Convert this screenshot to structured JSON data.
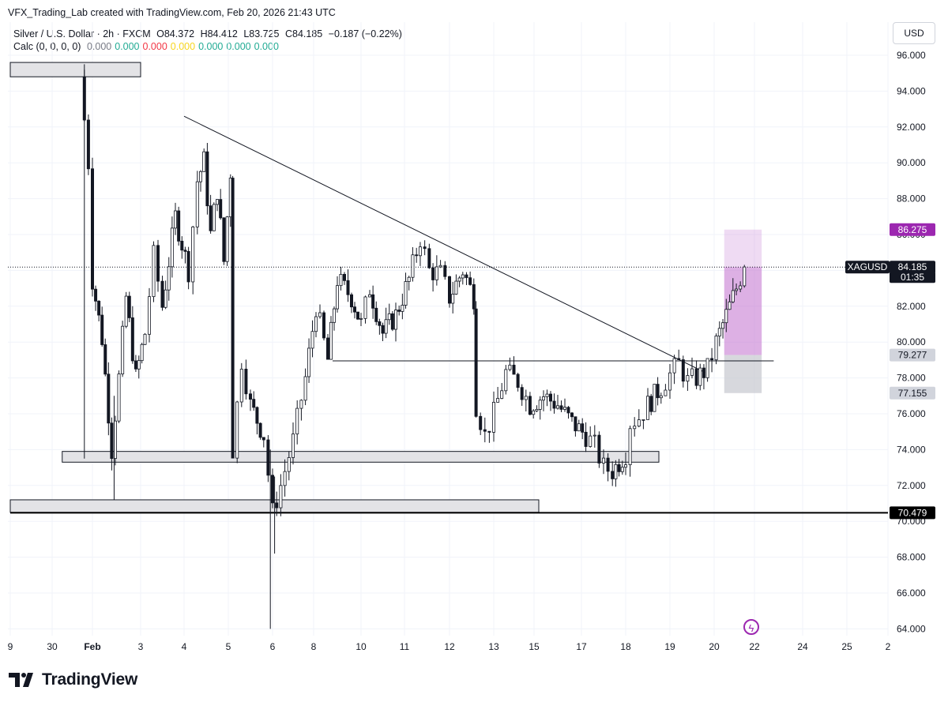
{
  "header": {
    "credit": "VFX_Trading_Lab created with TradingView.com, Feb 20, 2026 21:43 UTC",
    "symbol_line": "Silver / U.S. Dollar · 2h · FXCM",
    "open": "O84.372",
    "high": "H84.412",
    "low": "L83.725",
    "close": "C84.185",
    "change": "−0.187 (−0.22%)",
    "indicator_name": "Calc (0, 0, 0, 0)",
    "indicator_values": [
      {
        "text": "0.000",
        "color": "#787b86"
      },
      {
        "text": "0.000",
        "color": "#22ab94"
      },
      {
        "text": "0.000",
        "color": "#f23645"
      },
      {
        "text": "0.000",
        "color": "#f7d51d"
      },
      {
        "text": "0.000",
        "color": "#22ab94"
      },
      {
        "text": "0.000",
        "color": "#22ab94"
      },
      {
        "text": "0.000",
        "color": "#22ab94"
      }
    ]
  },
  "currency_button": "USD",
  "brand": {
    "logo": "tradingview-logo-icon",
    "name": "TradingView"
  },
  "chart_data": {
    "type": "candlestick",
    "symbol": "XAGUSD",
    "timeframe": "2h",
    "y_axis": {
      "side": "right",
      "range": [
        63.5,
        97.5
      ],
      "ticks": [
        "96.000",
        "94.000",
        "92.000",
        "90.000",
        "88.000",
        "86.000",
        "84.000",
        "82.000",
        "80.000",
        "78.000",
        "76.000",
        "74.000",
        "72.000",
        "70.000",
        "68.000",
        "66.000",
        "64.000"
      ]
    },
    "x_axis": {
      "ticks": [
        {
          "label": "9",
          "x": 0.0
        },
        {
          "label": "30",
          "x": 1.0
        },
        {
          "label": "Feb",
          "x": 2.0
        },
        {
          "label": "3",
          "x": 3.0
        },
        {
          "label": "4",
          "x": 4.0
        },
        {
          "label": "5",
          "x": 5.0
        },
        {
          "label": "6",
          "x": 6.0
        },
        {
          "label": "8",
          "x": 7.0
        },
        {
          "label": "10",
          "x": 8.0
        },
        {
          "label": "11",
          "x": 9.0
        },
        {
          "label": "12",
          "x": 10.0
        },
        {
          "label": "13",
          "x": 11.0
        },
        {
          "label": "15",
          "x": 12.0
        },
        {
          "label": "17",
          "x": 13.0
        },
        {
          "label": "18",
          "x": 14.0
        },
        {
          "label": "19",
          "x": 15.0
        },
        {
          "label": "20",
          "x": 16.0
        },
        {
          "label": "22",
          "x": 17.0
        },
        {
          "label": "24",
          "x": 18.0
        },
        {
          "label": "25",
          "x": 19.0
        },
        {
          "label": "2",
          "x": 20.0
        }
      ]
    },
    "price_path": [
      [
        1.7,
        94.8
      ],
      [
        1.9,
        90.0
      ],
      [
        2.0,
        83.5
      ],
      [
        2.2,
        80.2
      ],
      [
        2.4,
        74.0
      ],
      [
        2.55,
        78.0
      ],
      [
        2.7,
        82.5
      ],
      [
        2.9,
        78.0
      ],
      [
        3.1,
        80.5
      ],
      [
        3.3,
        84.8
      ],
      [
        3.5,
        82.0
      ],
      [
        3.8,
        87.0
      ],
      [
        4.1,
        84.0
      ],
      [
        4.3,
        89.0
      ],
      [
        4.45,
        90.1
      ],
      [
        4.6,
        86.0
      ],
      [
        4.75,
        88.5
      ],
      [
        4.9,
        84.5
      ],
      [
        5.05,
        89.5
      ],
      [
        5.1,
        74.0
      ],
      [
        5.3,
        79.0
      ],
      [
        5.5,
        76.5
      ],
      [
        5.8,
        74.8
      ],
      [
        6.0,
        70.5
      ],
      [
        6.2,
        72.0
      ],
      [
        6.5,
        74.5
      ],
      [
        6.8,
        78.0
      ],
      [
        7.05,
        82.0
      ],
      [
        7.3,
        79.0
      ],
      [
        7.5,
        83.5
      ],
      [
        7.8,
        82.5
      ],
      [
        8.0,
        81.0
      ],
      [
        8.2,
        83.0
      ],
      [
        8.5,
        80.5
      ],
      [
        8.8,
        81.5
      ],
      [
        9.1,
        83.5
      ],
      [
        9.35,
        85.8
      ],
      [
        9.55,
        84.0
      ],
      [
        9.8,
        83.8
      ],
      [
        10.0,
        82.5
      ],
      [
        10.3,
        84.0
      ],
      [
        10.55,
        82.5
      ],
      [
        10.6,
        76.5
      ],
      [
        10.8,
        74.8
      ],
      [
        11.0,
        76.0
      ],
      [
        11.3,
        78.3
      ],
      [
        11.6,
        77.8
      ],
      [
        11.9,
        76.5
      ],
      [
        12.2,
        77.0
      ],
      [
        12.5,
        76.5
      ],
      [
        12.8,
        75.5
      ],
      [
        13.1,
        74.8
      ],
      [
        13.3,
        74.2
      ],
      [
        13.5,
        73.0
      ],
      [
        13.7,
        72.8
      ],
      [
        14.0,
        73.8
      ],
      [
        14.1,
        75.5
      ],
      [
        14.3,
        75.8
      ],
      [
        14.5,
        76.5
      ],
      [
        14.8,
        77.5
      ],
      [
        15.0,
        78.2
      ],
      [
        15.2,
        78.8
      ],
      [
        15.4,
        77.8
      ],
      [
        15.6,
        78.0
      ],
      [
        15.85,
        78.5
      ],
      [
        16.05,
        80.0
      ],
      [
        16.3,
        81.5
      ],
      [
        16.55,
        83.0
      ],
      [
        16.75,
        84.19
      ]
    ],
    "trendline": [
      [
        4.0,
        92.6
      ],
      [
        15.8,
        78.3
      ]
    ],
    "horizontal_lines": [
      {
        "x_from": 7.4,
        "x_to": 17.4,
        "y": 78.95,
        "color": "#131722"
      },
      {
        "x_from": 0.0,
        "x_to": 20.0,
        "y": 70.479,
        "color": "#000000"
      }
    ],
    "zones": [
      {
        "x_from": 0.0,
        "x_to": 3.0,
        "y_low": 94.8,
        "y_high": 95.6
      },
      {
        "x_from": 1.25,
        "x_to": 14.75,
        "y_low": 73.3,
        "y_high": 73.9
      },
      {
        "x_from": 0.0,
        "x_to": 12.1,
        "y_low": 70.5,
        "y_high": 71.2
      }
    ],
    "position_box": {
      "x_from": 16.25,
      "x_to": 17.15,
      "entry": 79.277,
      "target": 86.275,
      "stop": 77.155
    },
    "current_price_line": 84.185,
    "price_labels": [
      {
        "text": "86.275",
        "y": 86.275,
        "bg": "#9c27b0",
        "fg": "#ffffff"
      },
      {
        "text": "XAGUSD",
        "y": 84.185,
        "bg": "#131722",
        "fg": "#ffffff"
      },
      {
        "text": "84.185",
        "y": 84.185,
        "bg": "#131722",
        "fg": "#ffffff"
      },
      {
        "text": "01:35",
        "y": 84.185,
        "bg": "#131722",
        "fg": "#ffffff"
      },
      {
        "text": "79.277",
        "y": 79.277,
        "bg": "#d1d4dc",
        "fg": "#131722"
      },
      {
        "text": "77.155",
        "y": 77.155,
        "bg": "#d1d4dc",
        "fg": "#131722"
      },
      {
        "text": "70.479",
        "y": 70.479,
        "bg": "#000000",
        "fg": "#ffffff"
      }
    ],
    "colors": {
      "candle": "#131722",
      "box_target": "#c77dd3",
      "box_stop": "#c9cbd1",
      "zone_fill": "#e3e3e6",
      "zone_border": "#131722"
    }
  }
}
